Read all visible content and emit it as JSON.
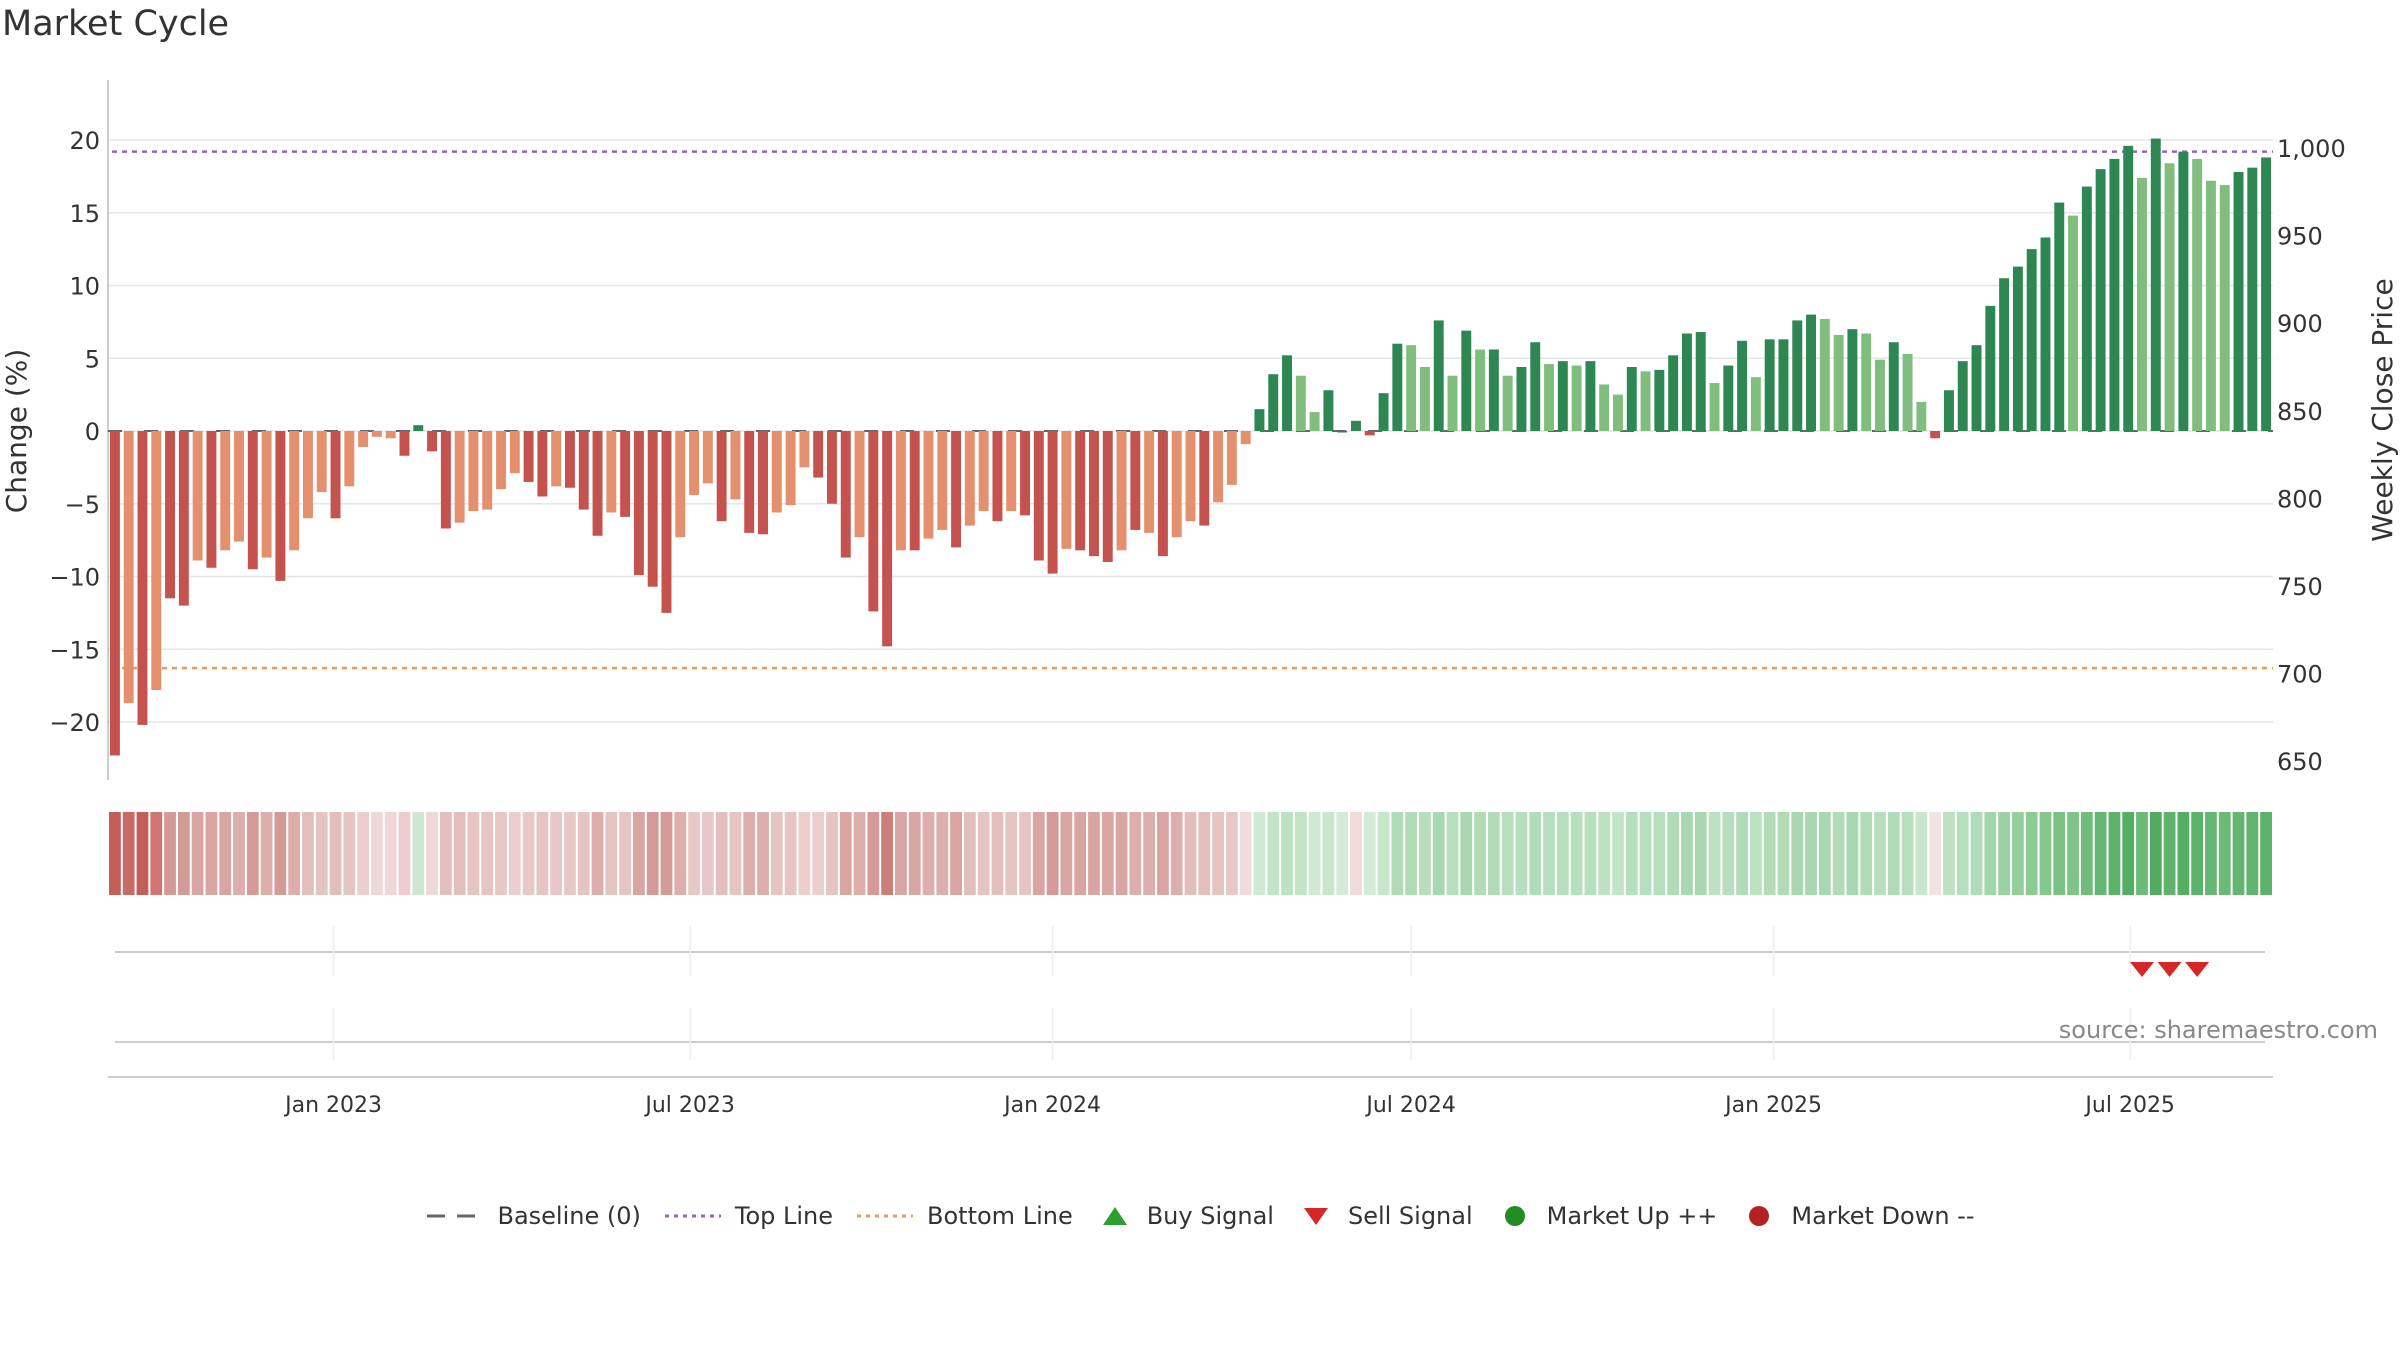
{
  "title": "Market Cycle",
  "source": "source: sharemaestro.com",
  "legend": {
    "baseline": "Baseline (0)",
    "top": "Top Line",
    "bottom": "Bottom Line",
    "buy": "Buy Signal",
    "sell": "Sell Signal",
    "up": "Market Up ++",
    "down": "Market Down --"
  },
  "colors": {
    "dark_red": "#c4524f",
    "light_red": "#e48f6e",
    "dark_green": "#2e8652",
    "light_green": "#80bd7e",
    "top_line": "#9467bd",
    "bottom_line": "#e89a5a",
    "sell": "#d62728",
    "buy": "#2ca02c",
    "up": "#228b22",
    "down": "#b22222"
  },
  "chart_data": {
    "type": "bar",
    "x_start": "2022-09-12",
    "x_step_days": 7,
    "xtick_labels": [
      "Jan 2023",
      "Jul 2023",
      "Jan 2024",
      "Jul 2024",
      "Jan 2025",
      "Jul 2025"
    ],
    "xtick_dates": [
      "2023-01-01",
      "2023-07-01",
      "2024-01-01",
      "2024-07-01",
      "2025-01-01",
      "2025-07-01"
    ],
    "ylabel": "Change (%)",
    "ylim": [
      -24,
      24
    ],
    "yticks": [
      20,
      15,
      10,
      5,
      0,
      -5,
      -10,
      -15,
      -20
    ],
    "y2label": "Weekly Close Price",
    "y2ticks": [
      "1,000",
      "950",
      "900",
      "850",
      "800",
      "750",
      "700",
      "650"
    ],
    "top_line": 19.2,
    "bottom_line": -16.3,
    "values": [
      -22.3,
      -18.7,
      -20.2,
      -17.8,
      -11.5,
      -12,
      -8.9,
      -9.4,
      -8.2,
      -7.6,
      -9.5,
      -8.7,
      -10.3,
      -8.2,
      -6,
      -4.2,
      -6,
      -3.8,
      -1.1,
      -0.4,
      -0.5,
      -1.7,
      0.4,
      -1.4,
      -6.7,
      -6.3,
      -5.5,
      -5.4,
      -4,
      -2.9,
      -3.5,
      -4.5,
      -3.8,
      -3.9,
      -5.4,
      -7.2,
      -5.6,
      -5.9,
      -9.9,
      -10.7,
      -12.5,
      -7.3,
      -4.4,
      -3.6,
      -6.2,
      -4.7,
      -7,
      -7.1,
      -5.6,
      -5.1,
      -2.5,
      -3.2,
      -5,
      -8.7,
      -7.3,
      -12.4,
      -14.8,
      -8.2,
      -8.2,
      -7.4,
      -6.8,
      -8,
      -6.5,
      -5.5,
      -6.2,
      -5.5,
      -5.8,
      -8.9,
      -9.8,
      -8.1,
      -8.2,
      -8.6,
      -9,
      -8.2,
      -6.8,
      -7,
      -8.6,
      -7.3,
      -6.2,
      -6.5,
      -4.9,
      -3.7,
      -0.9,
      1.5,
      3.9,
      5.2,
      3.8,
      1.3,
      2.8,
      0,
      0.7,
      -0.3,
      2.6,
      6,
      5.9,
      4.4,
      7.6,
      3.8,
      6.9,
      5.6,
      5.6,
      3.8,
      4.4,
      6.1,
      4.6,
      4.8,
      4.5,
      4.8,
      3.2,
      2.5,
      4.4,
      4.1,
      4.2,
      5.2,
      6.7,
      6.8,
      3.3,
      4.5,
      6.2,
      3.7,
      6.3,
      6.3,
      7.6,
      8,
      7.7,
      6.6,
      7,
      6.7,
      4.9,
      6.1,
      5.3,
      2,
      -0.5,
      2.8,
      4.8,
      5.9,
      8.6,
      10.5,
      11.3,
      12.5,
      13.3,
      15.7,
      14.8,
      16.8,
      18,
      18.7,
      19.6,
      17.4,
      20.1,
      18.4,
      19.2,
      18.7,
      17.2,
      16.9,
      17.8,
      18.1,
      18.8
    ],
    "shades": [
      "dr",
      "lr",
      "dr",
      "lr",
      "dr",
      "dr",
      "lr",
      "dr",
      "lr",
      "lr",
      "dr",
      "lr",
      "dr",
      "lr",
      "lr",
      "lr",
      "dr",
      "lr",
      "lr",
      "lr",
      "lr",
      "dr",
      "dg",
      "dr",
      "dr",
      "lr",
      "lr",
      "lr",
      "lr",
      "lr",
      "dr",
      "dr",
      "lr",
      "dr",
      "dr",
      "dr",
      "lr",
      "dr",
      "dr",
      "dr",
      "dr",
      "lr",
      "lr",
      "lr",
      "dr",
      "lr",
      "dr",
      "dr",
      "lr",
      "lr",
      "lr",
      "dr",
      "dr",
      "dr",
      "lr",
      "dr",
      "dr",
      "lr",
      "dr",
      "lr",
      "lr",
      "dr",
      "lr",
      "lr",
      "dr",
      "lr",
      "dr",
      "dr",
      "dr",
      "lr",
      "dr",
      "dr",
      "dr",
      "lr",
      "dr",
      "lr",
      "dr",
      "lr",
      "lr",
      "dr",
      "lr",
      "lr",
      "lr",
      "dg",
      "dg",
      "dg",
      "lg",
      "lg",
      "dg",
      "dg",
      "dg",
      "dr",
      "dg",
      "dg",
      "lg",
      "lg",
      "dg",
      "lg",
      "dg",
      "lg",
      "dg",
      "lg",
      "dg",
      "dg",
      "lg",
      "dg",
      "lg",
      "dg",
      "lg",
      "lg",
      "dg",
      "lg",
      "dg",
      "dg",
      "dg",
      "dg",
      "lg",
      "dg",
      "dg",
      "lg",
      "dg",
      "dg",
      "dg",
      "dg",
      "lg",
      "lg",
      "dg",
      "lg",
      "lg",
      "dg",
      "lg",
      "lg",
      "dr",
      "dg",
      "dg",
      "dg",
      "dg",
      "dg",
      "dg",
      "dg",
      "dg",
      "dg",
      "lg",
      "dg",
      "dg",
      "dg",
      "dg",
      "lg",
      "dg",
      "lg",
      "dg",
      "lg",
      "lg",
      "lg",
      "dg",
      "dg",
      "dg"
    ],
    "heat_colors": [
      "#c45e5a",
      "#c86a66",
      "#c45e5a",
      "#cd7672",
      "#d49a98",
      "#d49a98",
      "#d8a5a3",
      "#d8a5a3",
      "#d8a5a3",
      "#dcaeac",
      "#d49a98",
      "#dcaeac",
      "#d49a98",
      "#dcaeac",
      "#e2bebd",
      "#e5c4c2",
      "#e2bebd",
      "#e5c4c2",
      "#eccfcd",
      "#efd8d6",
      "#efd8d6",
      "#eccfcd",
      "#cfe6d0",
      "#efd8d6",
      "#e2bebd",
      "#e2bebd",
      "#e5c4c2",
      "#e5c4c2",
      "#e8c8c6",
      "#eccfcd",
      "#e8c8c6",
      "#e5c4c2",
      "#e8c8c6",
      "#e8c8c6",
      "#e5c4c2",
      "#dcaeac",
      "#e5c4c2",
      "#e5c4c2",
      "#d8a5a3",
      "#d49a98",
      "#d49a98",
      "#dcaeac",
      "#e8c8c6",
      "#e8c8c6",
      "#e2bebd",
      "#e5c4c2",
      "#dcaeac",
      "#dcaeac",
      "#e5c4c2",
      "#e5c4c2",
      "#eccfcd",
      "#eccfcd",
      "#e5c4c2",
      "#d8a5a3",
      "#dcaeac",
      "#d49a98",
      "#cc7e7a",
      "#d8a5a3",
      "#d8a5a3",
      "#dcaeac",
      "#dcaeac",
      "#d8a5a3",
      "#e2bebd",
      "#e5c4c2",
      "#e2bebd",
      "#e5c4c2",
      "#e5c4c2",
      "#d8a5a3",
      "#d49a98",
      "#d8a5a3",
      "#d8a5a3",
      "#d8a5a3",
      "#d8a5a3",
      "#d8a5a3",
      "#dcaeac",
      "#dcaeac",
      "#d8a5a3",
      "#dcaeac",
      "#e2bebd",
      "#e2bebd",
      "#e5c4c2",
      "#e8c8c6",
      "#f0dcdb",
      "#cfe9d2",
      "#c2e4c7",
      "#bde2c2",
      "#c2e4c7",
      "#cfe9d2",
      "#c7e6cb",
      "#d4ecd7",
      "#f0dcdb",
      "#d4ecd7",
      "#c7e6cb",
      "#b2dcb8",
      "#b2dcb8",
      "#b7dfbd",
      "#a9d8b0",
      "#b7dfbd",
      "#a9d8b0",
      "#b2dcb8",
      "#b2dcb8",
      "#b7dfbd",
      "#b7dfbd",
      "#b2dcb8",
      "#b7dfbd",
      "#b7dfbd",
      "#b7dfbd",
      "#b7dfbd",
      "#bde2c2",
      "#c2e4c7",
      "#b7dfbd",
      "#b7dfbd",
      "#b7dfbd",
      "#b2dcb8",
      "#a9d8b0",
      "#a9d8b0",
      "#bde2c2",
      "#b7dfbd",
      "#b2dcb8",
      "#bde2c2",
      "#b2dcb8",
      "#b2dcb8",
      "#a9d8b0",
      "#a9d8b0",
      "#a9d8b0",
      "#b2dcb8",
      "#a9d8b0",
      "#b2dcb8",
      "#b7dfbd",
      "#b2dcb8",
      "#b7dfbd",
      "#c7e6cb",
      "#f2e2e1",
      "#bde2c2",
      "#b7dfbd",
      "#b2dcb8",
      "#a2d5a9",
      "#9bd2a3",
      "#94cf9c",
      "#8ccb95",
      "#85c88e",
      "#79c184",
      "#7ec488",
      "#6fbc7b",
      "#64b672",
      "#5cb26b",
      "#56ae65",
      "#6cba78",
      "#52ab61",
      "#5eb36d",
      "#56ae65",
      "#5cb26b",
      "#66b774",
      "#6cba78",
      "#64b672",
      "#60b470",
      "#5cb26b"
    ],
    "sell_signals": [
      "2025-07-07",
      "2025-07-21",
      "2025-08-04"
    ],
    "buy_signals": []
  }
}
